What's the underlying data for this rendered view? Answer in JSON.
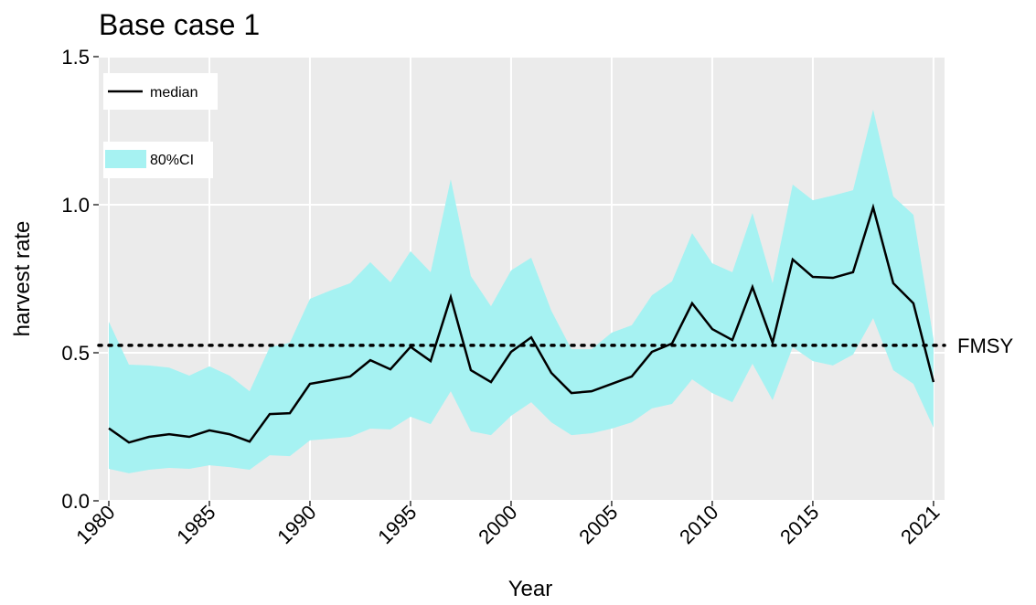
{
  "chart_data": {
    "type": "line",
    "title": "Base case 1",
    "x_label": "Year",
    "y_label": "harvest rate",
    "x": [
      1980,
      1981,
      1982,
      1983,
      1984,
      1985,
      1986,
      1987,
      1988,
      1989,
      1990,
      1991,
      1992,
      1993,
      1994,
      1995,
      1996,
      1997,
      1998,
      1999,
      2000,
      2001,
      2002,
      2003,
      2004,
      2005,
      2006,
      2007,
      2008,
      2009,
      2010,
      2011,
      2012,
      2013,
      2014,
      2015,
      2016,
      2017,
      2018,
      2019,
      2020,
      2021
    ],
    "series": [
      {
        "name": "median",
        "color": "#000000",
        "values": [
          0.245,
          0.197,
          0.216,
          0.225,
          0.216,
          0.238,
          0.225,
          0.2,
          0.293,
          0.296,
          0.395,
          0.407,
          0.42,
          0.475,
          0.444,
          0.52,
          0.472,
          0.688,
          0.441,
          0.401,
          0.503,
          0.552,
          0.432,
          0.364,
          0.37,
          0.395,
          0.42,
          0.503,
          0.531,
          0.667,
          0.58,
          0.543,
          0.722,
          0.534,
          0.815,
          0.756,
          0.753,
          0.772,
          0.991,
          0.735,
          0.667,
          0.401
        ]
      }
    ],
    "band": {
      "name": "80%CI",
      "color": "#a6f2f2",
      "upper": [
        0.605,
        0.46,
        0.457,
        0.45,
        0.423,
        0.454,
        0.423,
        0.37,
        0.519,
        0.534,
        0.682,
        0.71,
        0.735,
        0.806,
        0.738,
        0.843,
        0.772,
        1.086,
        0.759,
        0.657,
        0.778,
        0.821,
        0.642,
        0.512,
        0.512,
        0.568,
        0.593,
        0.694,
        0.741,
        0.904,
        0.802,
        0.772,
        0.972,
        0.735,
        1.068,
        1.015,
        1.031,
        1.049,
        1.321,
        1.028,
        0.966,
        0.546
      ],
      "lower": [
        0.108,
        0.093,
        0.105,
        0.111,
        0.108,
        0.12,
        0.114,
        0.105,
        0.154,
        0.151,
        0.204,
        0.21,
        0.216,
        0.244,
        0.241,
        0.284,
        0.259,
        0.37,
        0.235,
        0.222,
        0.287,
        0.333,
        0.265,
        0.222,
        0.228,
        0.244,
        0.265,
        0.312,
        0.327,
        0.41,
        0.364,
        0.333,
        0.463,
        0.34,
        0.519,
        0.472,
        0.457,
        0.494,
        0.617,
        0.441,
        0.395,
        0.247
      ]
    },
    "reference_line": {
      "label": "FMSY",
      "value": 0.525
    },
    "xlim": [
      1979.5,
      2021.55
    ],
    "ylim": [
      -0.0,
      1.5
    ],
    "xticks": [
      1980,
      1985,
      1990,
      1995,
      2000,
      2005,
      2010,
      2015,
      2021
    ],
    "yticks": [
      {
        "value": 0,
        "label": "0.0"
      },
      {
        "value": 0.5,
        "label": "0.5"
      },
      {
        "value": 1,
        "label": "1.0"
      },
      {
        "value": 1.5,
        "label": "1.5"
      }
    ],
    "grid": true,
    "legend": "top-left"
  }
}
